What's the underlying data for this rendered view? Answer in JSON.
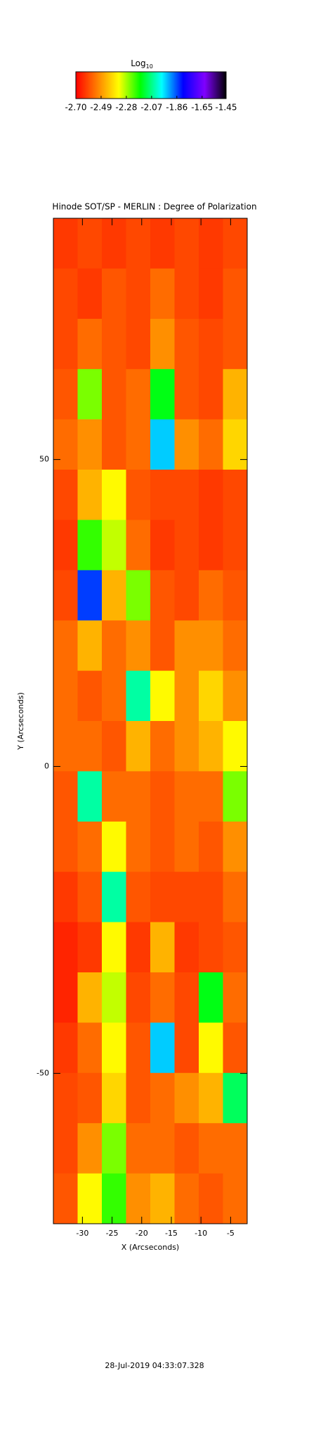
{
  "chart_data": {
    "type": "heatmap",
    "title": "Hinode SOT/SP - MERLIN : Degree of Polarization",
    "x_label": "X (Arcseconds)",
    "y_label": "Y (Arcseconds)",
    "footer": "28-Jul-2019 04:33:07.328",
    "colorbar_label": "Log",
    "colorbar_label_sub": "10",
    "colorscale": [
      "#ff0000",
      "#ff8000",
      "#ffff00",
      "#00ff00",
      "#00ffff",
      "#0000ff",
      "#8000ff",
      "#000000"
    ],
    "zlim": [
      -2.7,
      -1.45
    ],
    "zticks": [
      {
        "value": -2.7,
        "label": "-2.70"
      },
      {
        "value": -2.49,
        "label": "-2.49"
      },
      {
        "value": -2.28,
        "label": "-2.28"
      },
      {
        "value": -2.07,
        "label": "-2.07"
      },
      {
        "value": -1.86,
        "label": "-1.86"
      },
      {
        "value": -1.65,
        "label": "-1.65"
      },
      {
        "value": -1.45,
        "label": "-1.45"
      }
    ],
    "xlim": [
      -34.9,
      -2.2
    ],
    "ylim": [
      -74.5,
      89.3
    ],
    "xticks": [
      -30,
      -25,
      -20,
      -15,
      -10,
      -5
    ],
    "yticks": [
      -50,
      0,
      50
    ],
    "z": [
      [
        -2.62,
        -2.6,
        -2.62,
        -2.6,
        -2.62,
        -2.6,
        -2.62,
        -2.6
      ],
      [
        -2.6,
        -2.62,
        -2.58,
        -2.6,
        -2.55,
        -2.6,
        -2.62,
        -2.58
      ],
      [
        -2.6,
        -2.55,
        -2.58,
        -2.6,
        -2.5,
        -2.58,
        -2.6,
        -2.58
      ],
      [
        -2.58,
        -2.25,
        -2.58,
        -2.55,
        -2.15,
        -2.58,
        -2.6,
        -2.45
      ],
      [
        -2.55,
        -2.5,
        -2.58,
        -2.55,
        -1.95,
        -2.5,
        -2.55,
        -2.4
      ],
      [
        -2.6,
        -2.45,
        -2.35,
        -2.58,
        -2.6,
        -2.6,
        -2.62,
        -2.6
      ],
      [
        -2.62,
        -2.2,
        -2.3,
        -2.55,
        -2.62,
        -2.6,
        -2.62,
        -2.6
      ],
      [
        -2.6,
        -1.85,
        -2.45,
        -2.25,
        -2.58,
        -2.6,
        -2.55,
        -2.58
      ],
      [
        -2.55,
        -2.45,
        -2.55,
        -2.5,
        -2.58,
        -2.5,
        -2.5,
        -2.55
      ],
      [
        -2.55,
        -2.58,
        -2.55,
        -2.05,
        -2.35,
        -2.5,
        -2.4,
        -2.5
      ],
      [
        -2.55,
        -2.55,
        -2.58,
        -2.45,
        -2.55,
        -2.5,
        -2.45,
        -2.35
      ],
      [
        -2.58,
        -2.05,
        -2.55,
        -2.55,
        -2.58,
        -2.55,
        -2.55,
        -2.25
      ],
      [
        -2.58,
        -2.55,
        -2.35,
        -2.55,
        -2.58,
        -2.55,
        -2.58,
        -2.5
      ],
      [
        -2.62,
        -2.58,
        -2.05,
        -2.58,
        -2.6,
        -2.6,
        -2.6,
        -2.55
      ],
      [
        -2.65,
        -2.62,
        -2.35,
        -2.62,
        -2.45,
        -2.62,
        -2.6,
        -2.58
      ],
      [
        -2.65,
        -2.45,
        -2.3,
        -2.6,
        -2.55,
        -2.6,
        -2.15,
        -2.55
      ],
      [
        -2.62,
        -2.55,
        -2.35,
        -2.58,
        -1.95,
        -2.6,
        -2.35,
        -2.58
      ],
      [
        -2.6,
        -2.58,
        -2.4,
        -2.58,
        -2.55,
        -2.5,
        -2.45,
        -2.1
      ],
      [
        -2.6,
        -2.5,
        -2.25,
        -2.55,
        -2.55,
        -2.58,
        -2.55,
        -2.55
      ],
      [
        -2.58,
        -2.35,
        -2.2,
        -2.5,
        -2.45,
        -2.55,
        -2.58,
        -2.55
      ]
    ]
  }
}
